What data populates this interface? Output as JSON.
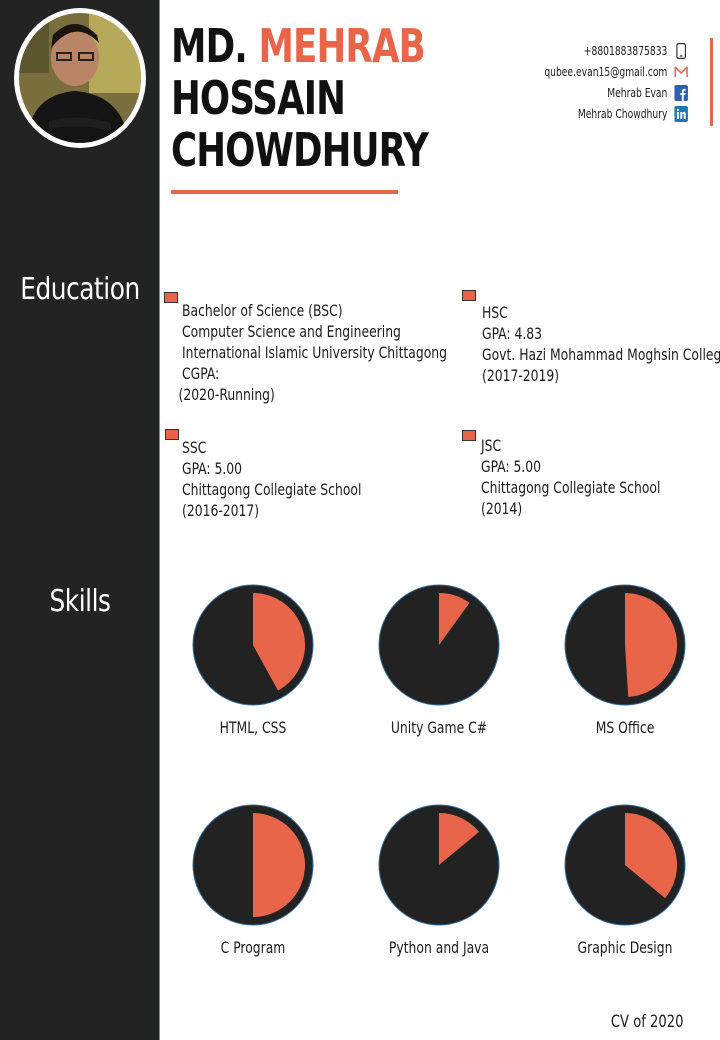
{
  "header": {
    "name_line1_a": "MD.",
    "name_line1_b": "MEHRAB",
    "name_line2": "HOSSAIN",
    "name_line3": "CHOWDHURY"
  },
  "contact": {
    "phone": "+8801883875833",
    "email": "qubee.evan15@gmail.com",
    "facebook": "Mehrab Evan",
    "linkedin": "Mehrab Chowdhury",
    "icons": [
      "phone-icon",
      "gmail-icon",
      "facebook-icon",
      "linkedin-icon"
    ]
  },
  "sidebar": {
    "education_title": "Education",
    "skills_title": "Skills"
  },
  "education": [
    {
      "lines": [
        "Bachelor of Science (BSC)",
        "Computer Science and Engineering",
        "International Islamic University  Chittagong",
        "CGPA:",
        "(2020-Running)"
      ]
    },
    {
      "lines": [
        "HSC",
        "GPA: 4.83",
        "Govt. Hazi Mohammad Moghsin College",
        "(2017-2019)"
      ]
    },
    {
      "lines": [
        "SSC",
        "GPA: 5.00",
        "Chittagong Collegiate School",
        "(2016-2017)"
      ]
    },
    {
      "lines": [
        "JSC",
        "GPA: 5.00",
        "Chittagong Collegiate School",
        "(2014)"
      ]
    }
  ],
  "skills": [
    {
      "label": "HTML, CSS",
      "fraction": 0.42
    },
    {
      "label": "Unity Game C#",
      "fraction": 0.1
    },
    {
      "label": "MS Office",
      "fraction": 0.49
    },
    {
      "label": "C Program",
      "fraction": 0.5
    },
    {
      "label": "Python and Java",
      "fraction": 0.14
    },
    {
      "label": "Graphic Design",
      "fraction": 0.36
    }
  ],
  "footer": "CV of 2020",
  "colors": {
    "accent": "#e8654a",
    "dark": "#232323"
  }
}
